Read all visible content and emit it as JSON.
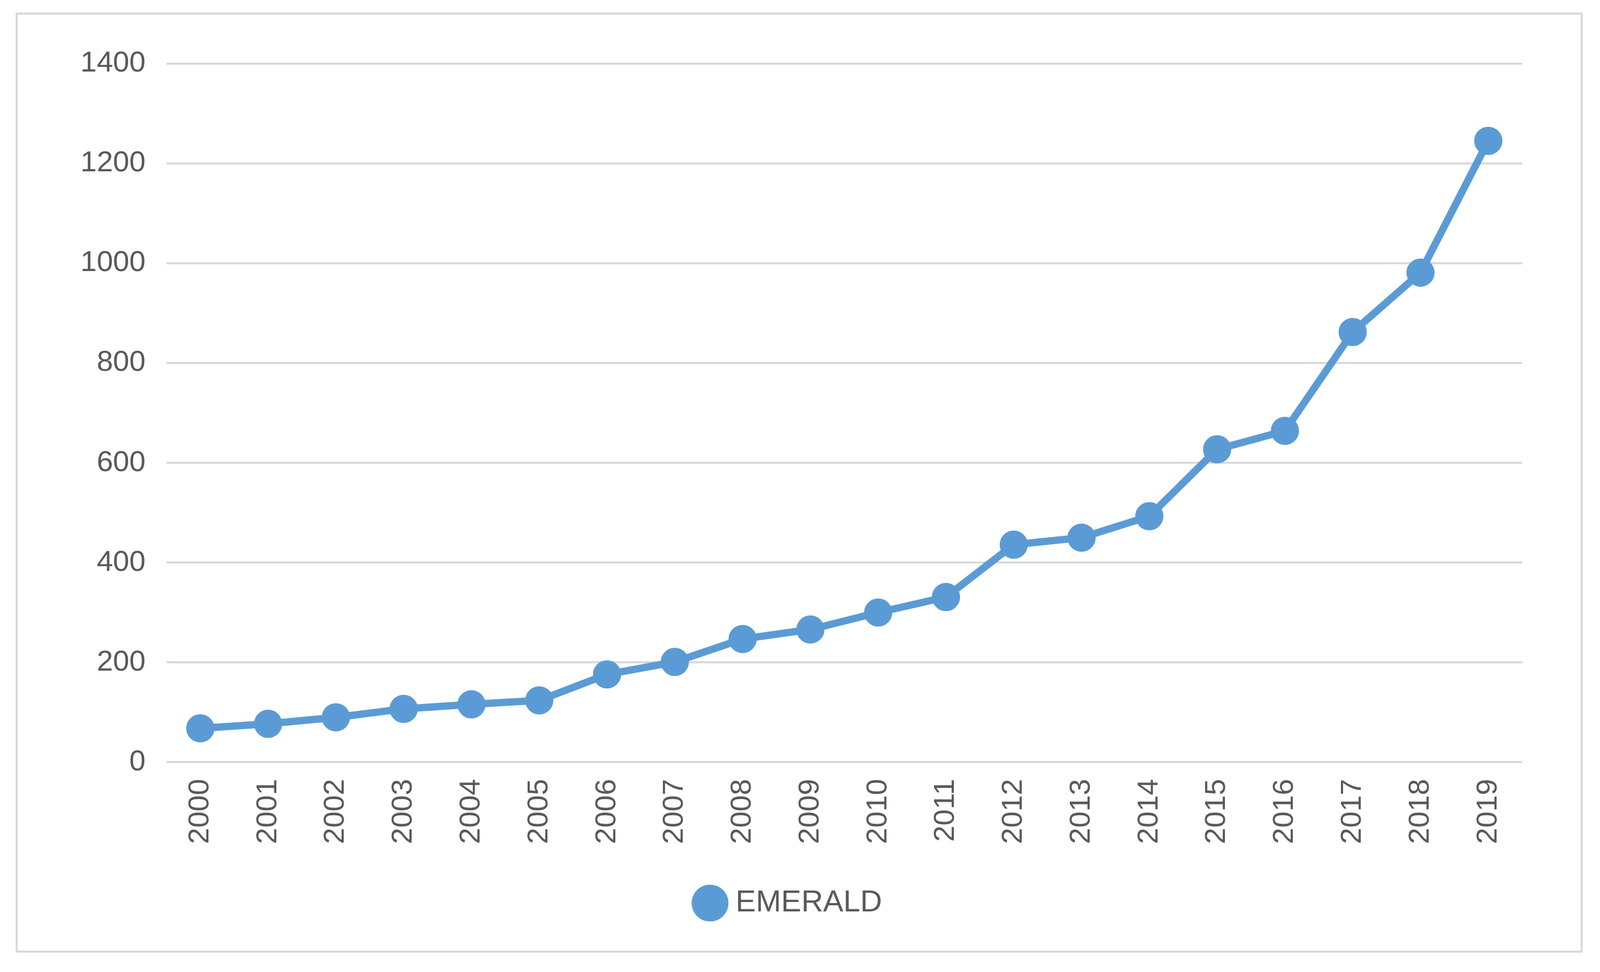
{
  "chart_data": {
    "type": "line",
    "categories": [
      "2000",
      "2001",
      "2002",
      "2003",
      "2004",
      "2005",
      "2006",
      "2007",
      "2008",
      "2009",
      "2010",
      "2011",
      "2012",
      "2013",
      "2014",
      "2015",
      "2016",
      "2017",
      "2018",
      "2019"
    ],
    "series": [
      {
        "name": "EMERALD",
        "color": "#5b9bd5",
        "marker": "circle",
        "line_style": "solid",
        "values": [
          68,
          77,
          90,
          107,
          116,
          124,
          176,
          201,
          247,
          266,
          300,
          331,
          436,
          450,
          493,
          627,
          664,
          862,
          981,
          1245
        ]
      }
    ],
    "ylim": [
      0,
      1400
    ],
    "yticks": [
      0,
      200,
      400,
      600,
      800,
      1000,
      1200,
      1400
    ],
    "grid": true,
    "legend": "bottom"
  }
}
